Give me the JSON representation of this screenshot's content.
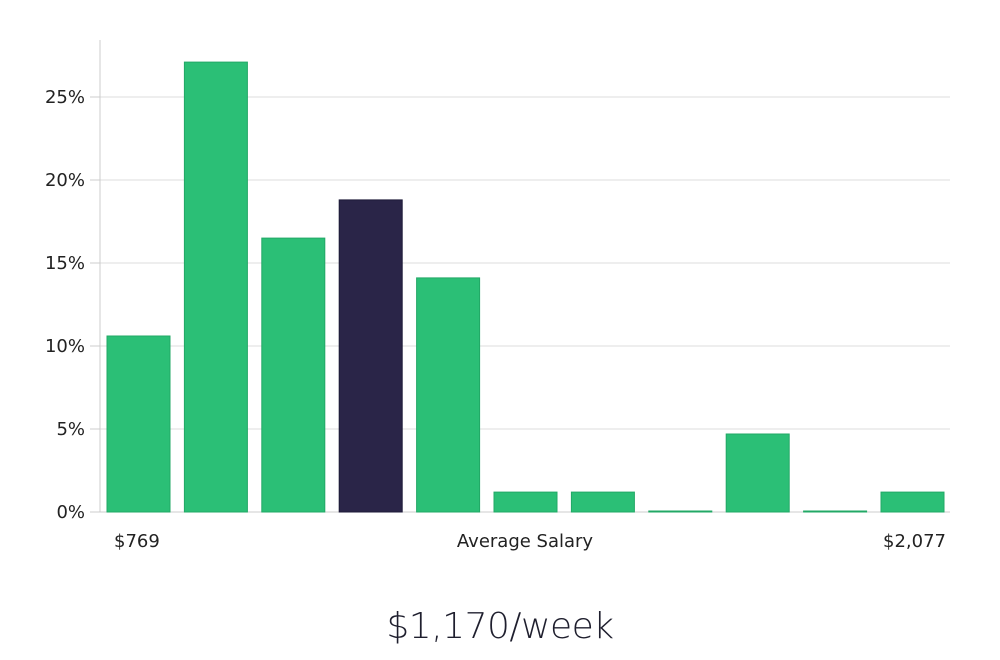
{
  "chart_data": {
    "type": "bar",
    "title": "",
    "xlabel": "Average Salary",
    "ylabel": "",
    "x_range_labels": {
      "min": "$769",
      "max": "$2,077"
    },
    "yticks": [
      "0%",
      "5%",
      "10%",
      "15%",
      "20%",
      "25%"
    ],
    "ylim": [
      0,
      28.5
    ],
    "grid": true,
    "legend": "none",
    "values": [
      10.6,
      27.1,
      16.5,
      18.8,
      14.1,
      1.2,
      1.2,
      0.05,
      4.7,
      0.05,
      1.2
    ],
    "highlight_index": 3,
    "colors": {
      "bar": "#2bbf76",
      "highlight": "#2a2548",
      "grid": "#dddddd",
      "axis": "#cccccc"
    }
  },
  "summary": {
    "headline": "$1,170/week"
  }
}
